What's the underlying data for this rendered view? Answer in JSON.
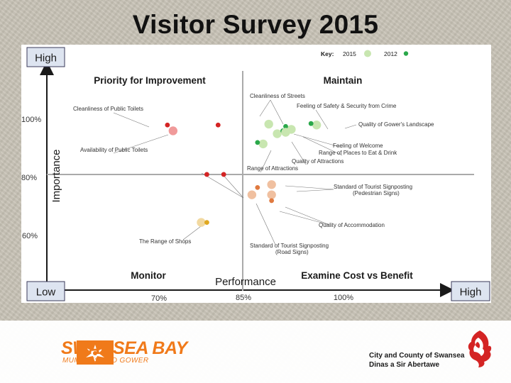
{
  "slide": {
    "title": "Visitor Survey 2015"
  },
  "colors": {
    "y2015": "#c8e6b0",
    "y2012": "#2aa84a",
    "improve_2015": "#f09a9a",
    "improve_2012": "#d42424",
    "shops_2015": "#f2d9a0",
    "shops_2012": "#e0a820",
    "examine_2015": "#f0c0a0",
    "examine_2012": "#e07a40",
    "accent_orange": "#f07a1a"
  },
  "chart_data": {
    "type": "scatter",
    "title": "",
    "xlabel": "Performance",
    "ylabel": "Importance",
    "x_axis_end_labels": {
      "low": "Low",
      "high": "High"
    },
    "y_axis_end_labels": {
      "low": "Low",
      "high": "High"
    },
    "x_ticks": [
      "70%",
      "85%",
      "100%"
    ],
    "y_ticks": [
      "100%",
      "80%",
      "60%"
    ],
    "quadrants": {
      "top_left": "Priority for Improvement",
      "top_right": "Maintain",
      "bottom_left": "Monitor",
      "bottom_right": "Examine Cost vs Benefit"
    },
    "legend": {
      "title": "Key:",
      "entries": [
        "2015",
        "2012"
      ],
      "placement": "top-right"
    },
    "grid": false,
    "points": [
      {
        "label": "Cleanliness of Public Toilets",
        "quadrant": "improve",
        "y2015": [
          72.5,
          95.5
        ],
        "y2012": [
          71.5,
          97.5
        ]
      },
      {
        "label": "Availability of Public Toilets",
        "quadrant": "improve",
        "y2012_only": [
          80.5,
          97.5
        ]
      },
      {
        "label": "Range of Attractions (upper-left pair)",
        "quadrant": "improve",
        "y2012": [
          78.5,
          80.5
        ],
        "y2012_b": [
          81.5,
          80.5
        ]
      },
      {
        "label": "The Range of Shops",
        "quadrant": "monitor",
        "y2015": [
          77.5,
          64.0
        ],
        "y2012": [
          78.5,
          64.0
        ]
      },
      {
        "label": "Cleanliness of Streets",
        "quadrant": "maintain",
        "y2015": [
          89.5,
          97.8
        ]
      },
      {
        "label": "Feeling of Safety & Security from Crime",
        "quadrant": "maintain",
        "y2015": [
          93.5,
          96.0
        ],
        "y2012": [
          92.5,
          97.0
        ]
      },
      {
        "label": "Quality of Gower's Landscape",
        "quadrant": "maintain",
        "y2015": [
          98.0,
          97.5
        ],
        "y2012": [
          97.0,
          98.0
        ]
      },
      {
        "label": "Feeling of Welcome",
        "quadrant": "maintain",
        "y2015": [
          91.0,
          94.5
        ],
        "y2012": [
          92.0,
          95.5
        ]
      },
      {
        "label": "Range of Places to Eat & Drink",
        "quadrant": "maintain",
        "y2015": [
          92.5,
          95.0
        ]
      },
      {
        "label": "Quality of Attractions",
        "quadrant": "maintain",
        "y2015": [
          88.5,
          91.0
        ],
        "y2012": [
          87.5,
          91.5
        ]
      },
      {
        "label": "Standard of Tourist Signposting (Pedestrian Signs)",
        "quadrant": "examine",
        "y2015": [
          90.0,
          77.0
        ],
        "y2012": [
          87.5,
          76.0
        ]
      },
      {
        "label": "Quality of Accommodation",
        "quadrant": "examine",
        "y2015": [
          90.0,
          73.5
        ],
        "y2012": [
          90.0,
          71.5
        ]
      },
      {
        "label": "Standard of Tourist Signposting (Road Signs)",
        "quadrant": "examine",
        "y2015": [
          86.5,
          73.5
        ]
      }
    ],
    "annotations": [
      {
        "text": "Priority for Improvement",
        "role": "quadrant"
      },
      {
        "text": "Maintain",
        "role": "quadrant"
      },
      {
        "text": "Monitor",
        "role": "quadrant"
      },
      {
        "text": "Examine Cost vs Benefit",
        "role": "quadrant"
      },
      {
        "text": "Cleanliness of Public Toilets"
      },
      {
        "text": "Availability of Public Toilets"
      },
      {
        "text": "Cleanliness of Streets"
      },
      {
        "text": "Feeling of Safety & Security from Crime"
      },
      {
        "text": "Quality of Gower's Landscape"
      },
      {
        "text": "Feeling of Welcome"
      },
      {
        "text": "Range of Places to Eat & Drink"
      },
      {
        "text": "Quality of Attractions"
      },
      {
        "text": "Range of Attractions"
      },
      {
        "text": "Standard of Tourist Signposting"
      },
      {
        "text": "(Pedestrian Signs)"
      },
      {
        "text": "Quality of Accommodation"
      },
      {
        "text": "The Range of Shops"
      },
      {
        "text": "Standard of Tourist Signposting"
      },
      {
        "text": "(Road Signs)"
      }
    ]
  },
  "footer": {
    "left_logo": {
      "big": "SWANSEA BAY",
      "small": "MUMBLES AND GOWER",
      "icon": "sun-star-logo-icon"
    },
    "right_logo": {
      "line1": "City and County of Swansea",
      "line2": "Dinas a Sir Abertawe",
      "icon": "dragon-crest-icon"
    }
  }
}
